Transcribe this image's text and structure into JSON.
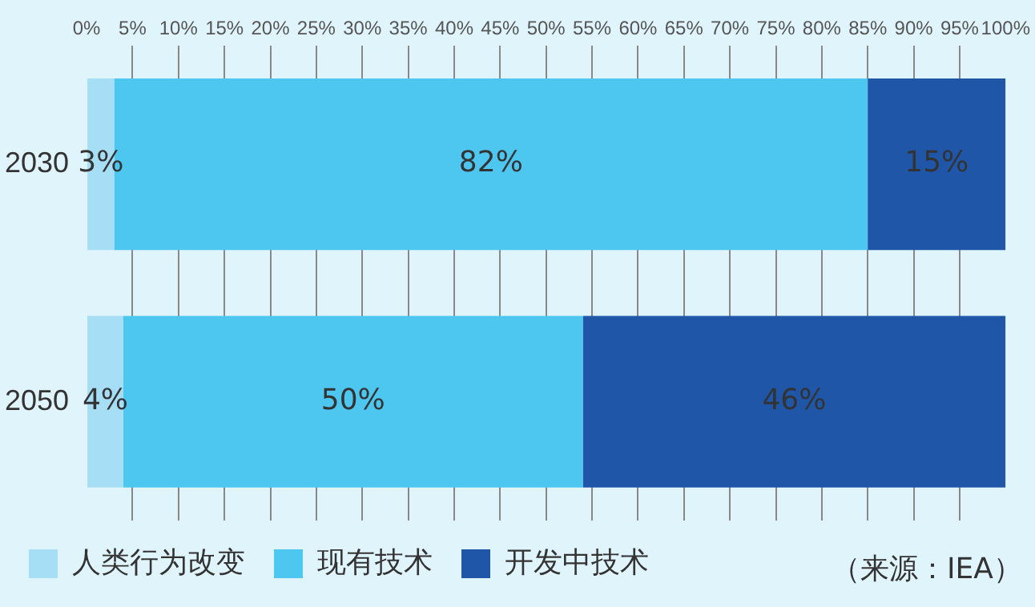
{
  "chart_data": {
    "type": "bar",
    "orientation": "horizontal",
    "stacked": true,
    "categories": [
      "2030",
      "2050"
    ],
    "series": [
      {
        "name": "人类行为改变",
        "color": "#a6def5",
        "values": [
          3,
          4
        ],
        "value_labels": [
          "3%",
          "4%"
        ]
      },
      {
        "name": "现有技术",
        "color": "#4dc6f0",
        "values": [
          82,
          50
        ],
        "value_labels": [
          "82%",
          "50%"
        ]
      },
      {
        "name": "开发中技术",
        "color": "#1f56a8",
        "values": [
          15,
          46
        ],
        "value_labels": [
          "15%",
          "46%"
        ]
      }
    ],
    "xlim": [
      0,
      100
    ],
    "xticks": [
      {
        "value": 0,
        "label": "0%"
      },
      {
        "value": 5,
        "label": "5%"
      },
      {
        "value": 10,
        "label": "10%"
      },
      {
        "value": 15,
        "label": "15%"
      },
      {
        "value": 20,
        "label": "20%"
      },
      {
        "value": 25,
        "label": "25%"
      },
      {
        "value": 30,
        "label": "30%"
      },
      {
        "value": 35,
        "label": "35%"
      },
      {
        "value": 40,
        "label": "40%"
      },
      {
        "value": 45,
        "label": "45%"
      },
      {
        "value": 50,
        "label": "50%"
      },
      {
        "value": 55,
        "label": "55%"
      },
      {
        "value": 60,
        "label": "60%"
      },
      {
        "value": 65,
        "label": "65%"
      },
      {
        "value": 70,
        "label": "70%"
      },
      {
        "value": 75,
        "label": "75%"
      },
      {
        "value": 80,
        "label": "80%"
      },
      {
        "value": 85,
        "label": "85%"
      },
      {
        "value": 90,
        "label": "90%"
      },
      {
        "value": 95,
        "label": "95%"
      },
      {
        "value": 100,
        "label": "100%"
      }
    ],
    "grid": "x",
    "legend": "bottom",
    "annotations": [
      "（来源：IEA）"
    ]
  }
}
